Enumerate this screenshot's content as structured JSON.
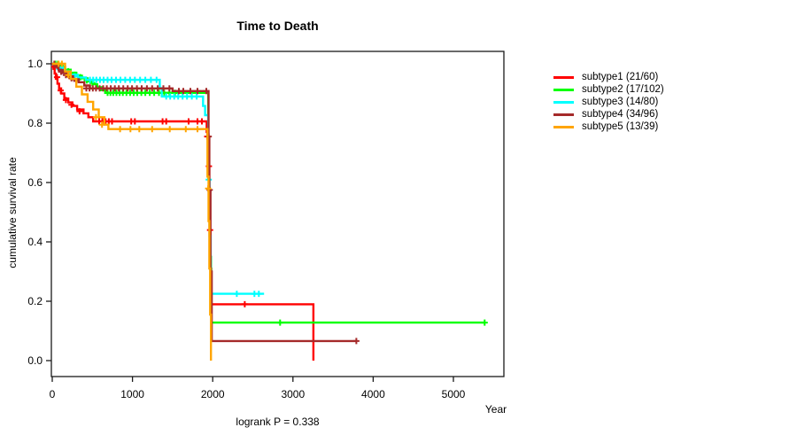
{
  "title": "Time to Death",
  "y_axis_label": "cumulative survival rate",
  "x_axis_label": "Year",
  "footer": "logrank P = 0.338",
  "legend": {
    "position": "right",
    "items": [
      {
        "label": "subtype1 (21/60)",
        "color": "#ff0000"
      },
      {
        "label": "subtype2 (17/102)",
        "color": "#00ff00"
      },
      {
        "label": "subtype3 (14/80)",
        "color": "#00ffff"
      },
      {
        "label": "subtype4 (34/96)",
        "color": "#a52a2a"
      },
      {
        "label": "subtype5 (13/39)",
        "color": "#ffa500"
      }
    ]
  },
  "chart_data": {
    "type": "line",
    "subtype": "kaplan-meier-step-curves",
    "title": "Time to Death",
    "xlabel": "Year",
    "ylabel": "cumulative survival rate",
    "xlim": [
      0,
      5630
    ],
    "ylim": [
      0,
      1.0
    ],
    "x_ticks": [
      0,
      1000,
      2000,
      3000,
      4000,
      5000
    ],
    "y_ticks": [
      0.0,
      0.2,
      0.4,
      0.6,
      0.8,
      1.0
    ],
    "y_tick_labels": [
      "0.0",
      "0.2",
      "0.4",
      "0.6",
      "0.8",
      "1.0"
    ],
    "grid": false,
    "legend_position": "right",
    "annotation": "logrank P = 0.338",
    "series": [
      {
        "name": "subtype1 (21/60)",
        "color": "#ff0000",
        "steps": [
          [
            0,
            1.0
          ],
          [
            15,
            0.983
          ],
          [
            30,
            0.967
          ],
          [
            45,
            0.95
          ],
          [
            65,
            0.933
          ],
          [
            85,
            0.917
          ],
          [
            110,
            0.9
          ],
          [
            150,
            0.883
          ],
          [
            200,
            0.87
          ],
          [
            250,
            0.858
          ],
          [
            310,
            0.846
          ],
          [
            390,
            0.833
          ],
          [
            450,
            0.82
          ],
          [
            510,
            0.806
          ],
          [
            1925,
            0.77
          ],
          [
            1940,
            0.72
          ],
          [
            1950,
            0.655
          ],
          [
            1958,
            0.55
          ],
          [
            1966,
            0.44
          ],
          [
            1974,
            0.31
          ],
          [
            1982,
            0.19
          ],
          [
            3255,
            0.0
          ]
        ],
        "end_day": 3255,
        "censors": [
          [
            25,
            0.99
          ],
          [
            60,
            0.955
          ],
          [
            105,
            0.91
          ],
          [
            170,
            0.878
          ],
          [
            240,
            0.862
          ],
          [
            340,
            0.84
          ],
          [
            585,
            0.806
          ],
          [
            625,
            0.806
          ],
          [
            665,
            0.806
          ],
          [
            705,
            0.806
          ],
          [
            745,
            0.806
          ],
          [
            985,
            0.806
          ],
          [
            1030,
            0.806
          ],
          [
            1375,
            0.806
          ],
          [
            1420,
            0.806
          ],
          [
            1700,
            0.806
          ],
          [
            1810,
            0.806
          ],
          [
            1865,
            0.806
          ],
          [
            1932,
            0.755
          ],
          [
            1952,
            0.655
          ],
          [
            1967,
            0.44
          ],
          [
            2400,
            0.19
          ]
        ]
      },
      {
        "name": "subtype2 (17/102)",
        "color": "#00ff00",
        "steps": [
          [
            0,
            1.0
          ],
          [
            100,
            0.99
          ],
          [
            160,
            0.98
          ],
          [
            230,
            0.97
          ],
          [
            300,
            0.96
          ],
          [
            370,
            0.951
          ],
          [
            440,
            0.941
          ],
          [
            510,
            0.931
          ],
          [
            560,
            0.921
          ],
          [
            610,
            0.911
          ],
          [
            660,
            0.902
          ],
          [
            1945,
            0.75
          ],
          [
            1955,
            0.55
          ],
          [
            1965,
            0.35
          ],
          [
            1978,
            0.128
          ]
        ],
        "end_day": 5390,
        "censors": [
          [
            40,
            1.0
          ],
          [
            70,
            1.0
          ],
          [
            130,
            0.99
          ],
          [
            200,
            0.975
          ],
          [
            280,
            0.963
          ],
          [
            350,
            0.955
          ],
          [
            430,
            0.944
          ],
          [
            500,
            0.935
          ],
          [
            690,
            0.902
          ],
          [
            725,
            0.902
          ],
          [
            760,
            0.902
          ],
          [
            800,
            0.902
          ],
          [
            840,
            0.902
          ],
          [
            880,
            0.902
          ],
          [
            925,
            0.902
          ],
          [
            970,
            0.902
          ],
          [
            1015,
            0.902
          ],
          [
            1060,
            0.902
          ],
          [
            1110,
            0.902
          ],
          [
            1160,
            0.902
          ],
          [
            1215,
            0.902
          ],
          [
            1270,
            0.902
          ],
          [
            1330,
            0.902
          ],
          [
            1395,
            0.902
          ],
          [
            1460,
            0.902
          ],
          [
            1530,
            0.902
          ],
          [
            2840,
            0.128
          ],
          [
            5390,
            0.128
          ]
        ]
      },
      {
        "name": "subtype3 (14/80)",
        "color": "#00ffff",
        "steps": [
          [
            0,
            1.0
          ],
          [
            60,
            0.988
          ],
          [
            130,
            0.975
          ],
          [
            220,
            0.963
          ],
          [
            320,
            0.954
          ],
          [
            420,
            0.946
          ],
          [
            1340,
            0.918
          ],
          [
            1365,
            0.89
          ],
          [
            1880,
            0.858
          ],
          [
            1905,
            0.827
          ],
          [
            1945,
            0.61
          ],
          [
            1960,
            0.42
          ],
          [
            1975,
            0.225
          ]
        ],
        "end_day": 2640,
        "censors": [
          [
            90,
            0.982
          ],
          [
            170,
            0.97
          ],
          [
            280,
            0.958
          ],
          [
            470,
            0.946
          ],
          [
            510,
            0.946
          ],
          [
            550,
            0.946
          ],
          [
            595,
            0.946
          ],
          [
            640,
            0.946
          ],
          [
            690,
            0.946
          ],
          [
            740,
            0.946
          ],
          [
            795,
            0.946
          ],
          [
            850,
            0.946
          ],
          [
            910,
            0.946
          ],
          [
            970,
            0.946
          ],
          [
            1030,
            0.946
          ],
          [
            1095,
            0.946
          ],
          [
            1160,
            0.946
          ],
          [
            1230,
            0.946
          ],
          [
            1300,
            0.946
          ],
          [
            1420,
            0.89
          ],
          [
            1470,
            0.89
          ],
          [
            1520,
            0.89
          ],
          [
            1570,
            0.89
          ],
          [
            1625,
            0.89
          ],
          [
            1680,
            0.89
          ],
          [
            1740,
            0.89
          ],
          [
            1800,
            0.89
          ],
          [
            1950,
            0.61
          ],
          [
            2300,
            0.225
          ],
          [
            2520,
            0.225
          ],
          [
            2575,
            0.225
          ]
        ]
      },
      {
        "name": "subtype4 (34/96)",
        "color": "#a52a2a",
        "steps": [
          [
            0,
            1.0
          ],
          [
            40,
            0.99
          ],
          [
            80,
            0.979
          ],
          [
            130,
            0.969
          ],
          [
            190,
            0.958
          ],
          [
            260,
            0.948
          ],
          [
            330,
            0.938
          ],
          [
            400,
            0.927
          ],
          [
            470,
            0.917
          ],
          [
            1500,
            0.908
          ],
          [
            1948,
            0.75
          ],
          [
            1958,
            0.57
          ],
          [
            1972,
            0.3
          ],
          [
            1988,
            0.066
          ]
        ],
        "end_day": 3790,
        "censors": [
          [
            25,
            1.0
          ],
          [
            60,
            0.993
          ],
          [
            110,
            0.973
          ],
          [
            170,
            0.962
          ],
          [
            240,
            0.951
          ],
          [
            300,
            0.942
          ],
          [
            425,
            0.917
          ],
          [
            465,
            0.917
          ],
          [
            505,
            0.917
          ],
          [
            545,
            0.917
          ],
          [
            590,
            0.917
          ],
          [
            635,
            0.917
          ],
          [
            680,
            0.917
          ],
          [
            730,
            0.917
          ],
          [
            780,
            0.917
          ],
          [
            830,
            0.917
          ],
          [
            885,
            0.917
          ],
          [
            940,
            0.917
          ],
          [
            995,
            0.917
          ],
          [
            1055,
            0.917
          ],
          [
            1115,
            0.917
          ],
          [
            1180,
            0.917
          ],
          [
            1245,
            0.917
          ],
          [
            1315,
            0.917
          ],
          [
            1385,
            0.917
          ],
          [
            1460,
            0.917
          ],
          [
            1578,
            0.908
          ],
          [
            1634,
            0.908
          ],
          [
            1722,
            0.908
          ],
          [
            1810,
            0.908
          ],
          [
            1920,
            0.908
          ],
          [
            1950,
            0.755
          ],
          [
            1962,
            0.575
          ],
          [
            3790,
            0.066
          ]
        ]
      },
      {
        "name": "subtype5 (13/39)",
        "color": "#ffa500",
        "steps": [
          [
            0,
            1.0
          ],
          [
            160,
            0.974
          ],
          [
            230,
            0.949
          ],
          [
            300,
            0.923
          ],
          [
            370,
            0.897
          ],
          [
            440,
            0.872
          ],
          [
            510,
            0.846
          ],
          [
            580,
            0.82
          ],
          [
            650,
            0.795
          ],
          [
            700,
            0.78
          ],
          [
            1935,
            0.62
          ],
          [
            1948,
            0.47
          ],
          [
            1958,
            0.31
          ],
          [
            1968,
            0.155
          ],
          [
            1978,
            0.0
          ]
        ],
        "end_day": 1978,
        "censors": [
          [
            80,
            1.0
          ],
          [
            120,
            1.0
          ],
          [
            200,
            0.962
          ],
          [
            545,
            0.82
          ],
          [
            620,
            0.795
          ],
          [
            845,
            0.78
          ],
          [
            975,
            0.78
          ],
          [
            1085,
            0.78
          ],
          [
            1245,
            0.78
          ],
          [
            1465,
            0.78
          ],
          [
            1665,
            0.78
          ],
          [
            1810,
            0.78
          ],
          [
            1944,
            0.58
          ]
        ]
      }
    ]
  }
}
